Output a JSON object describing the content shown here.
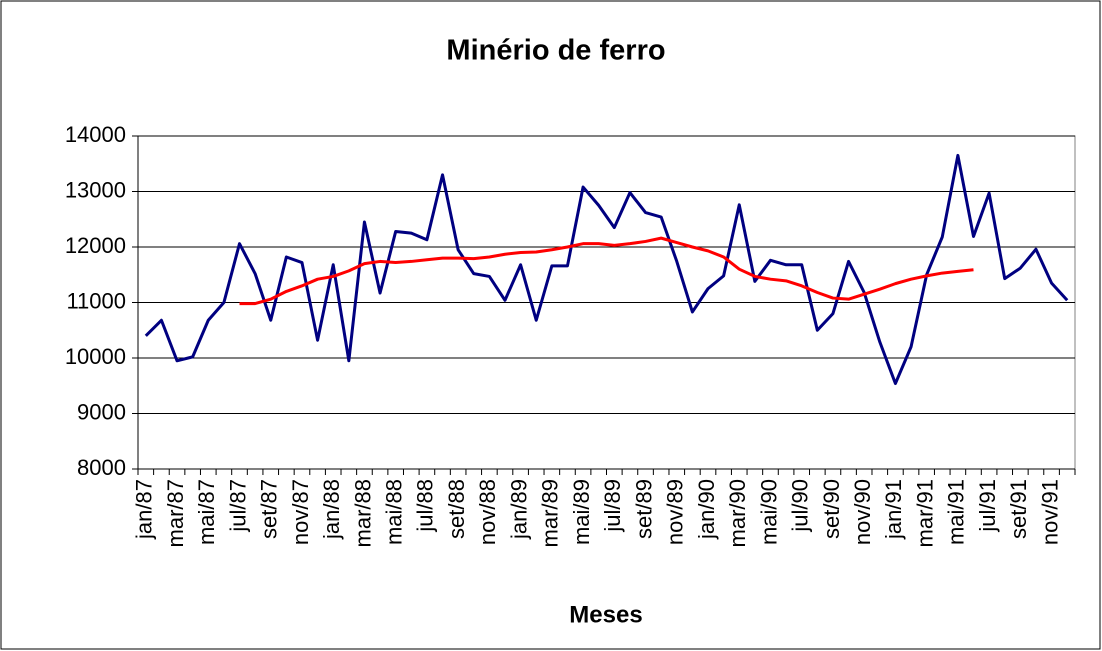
{
  "chart_data": {
    "type": "line",
    "title": "Minério de ferro",
    "xlabel": "Meses",
    "categories": [
      "jan/87",
      null,
      "mar/87",
      null,
      "mai/87",
      null,
      "jul/87",
      null,
      "set/87",
      null,
      "nov/87",
      null,
      "jan/88",
      null,
      "mar/88",
      null,
      "mai/88",
      null,
      "jul/88",
      null,
      "set/88",
      null,
      "nov/88",
      null,
      "jan/89",
      null,
      "mar/89",
      null,
      "mai/89",
      null,
      "jul/89",
      null,
      "set/89",
      null,
      "nov/89",
      null,
      "jan/90",
      null,
      "mar/90",
      null,
      "mai/90",
      null,
      "jul/90",
      null,
      "set/90",
      null,
      "nov/90",
      null,
      "jan/91",
      null,
      "mar/91",
      null,
      "mai/91",
      null,
      "jul/91",
      null,
      "set/91",
      null,
      "nov/91",
      null
    ],
    "series": [
      {
        "color": "#000080",
        "values": [
          10400,
          10680,
          9950,
          10020,
          10680,
          11000,
          12060,
          11520,
          10680,
          11820,
          11720,
          10320,
          11680,
          9950,
          12450,
          11170,
          12280,
          12250,
          12130,
          13300,
          11950,
          11520,
          11470,
          11040,
          11680,
          10680,
          11660,
          11660,
          13080,
          12750,
          12350,
          12980,
          12620,
          12540,
          11740,
          10830,
          11250,
          11480,
          12760,
          11380,
          11760,
          11680,
          11680,
          10500,
          10800,
          11740,
          11180,
          10290,
          9540,
          10200,
          11500,
          12180,
          13650,
          12190,
          12970,
          11430,
          11620,
          11960,
          11350,
          11040
        ]
      },
      {
        "color": "#ff0000",
        "values": [
          null,
          null,
          null,
          null,
          null,
          null,
          10980,
          10980,
          11060,
          11200,
          11300,
          11420,
          11470,
          11570,
          11700,
          11740,
          11720,
          11740,
          11770,
          11800,
          11800,
          11790,
          11820,
          11870,
          11900,
          11910,
          11950,
          12000,
          12060,
          12060,
          12030,
          12060,
          12100,
          12160,
          12080,
          12000,
          11930,
          11820,
          11600,
          11470,
          11420,
          11390,
          11300,
          11180,
          11080,
          11060,
          11150,
          11240,
          11340,
          11420,
          11480,
          11530,
          11560,
          11590,
          null,
          null,
          null,
          null,
          null,
          null
        ]
      }
    ],
    "ylim": [
      8000,
      14000
    ],
    "yticks": [
      8000,
      9000,
      10000,
      11000,
      12000,
      13000,
      14000
    ],
    "grid": true
  }
}
